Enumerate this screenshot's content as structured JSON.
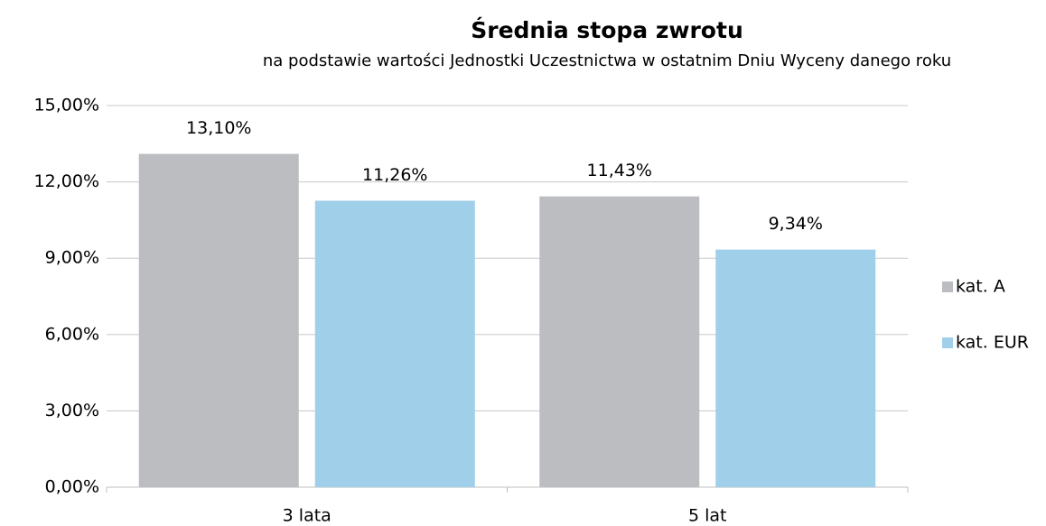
{
  "chart_data": {
    "type": "bar",
    "title": "Średnia stopa zwrotu",
    "subtitle": "na podstawie wartości Jednostki Uczestnictwa w ostatnim Dniu Wyceny danego roku",
    "categories": [
      "3 lata",
      "5 lat"
    ],
    "series": [
      {
        "name": "kat. A",
        "color": "#bcbdc1",
        "values": [
          13.1,
          11.43
        ],
        "value_labels": [
          "13,10%",
          "11,43%"
        ]
      },
      {
        "name": "kat. EUR",
        "color": "#9fcfe9",
        "values": [
          11.26,
          9.34
        ],
        "value_labels": [
          "11,26%",
          "9,34%"
        ]
      }
    ],
    "ylim": [
      0,
      15
    ],
    "yticks": [
      {
        "value": 0,
        "label": "0,00%"
      },
      {
        "value": 3,
        "label": "3,00%"
      },
      {
        "value": 6,
        "label": "6,00%"
      },
      {
        "value": 9,
        "label": "9,00%"
      },
      {
        "value": 12,
        "label": "12,00%"
      },
      {
        "value": 15,
        "label": "15,00%"
      }
    ],
    "grid": true,
    "legend": "right"
  }
}
